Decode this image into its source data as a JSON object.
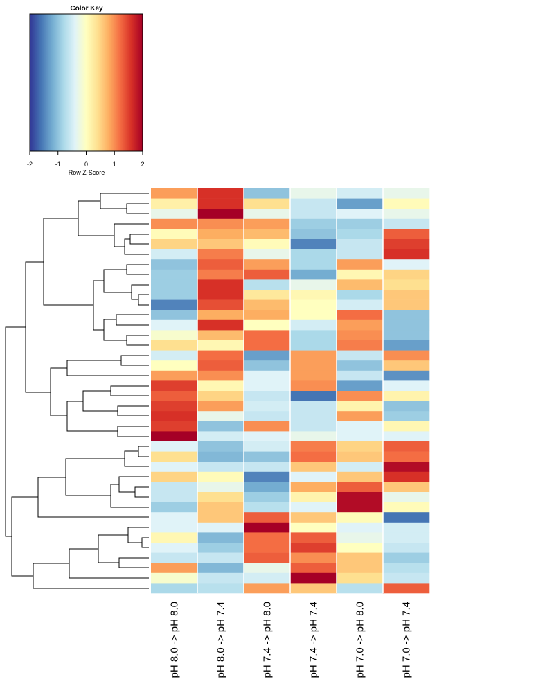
{
  "chart_data": {
    "type": "heatmap",
    "key_title": "Color Key",
    "key_xlabel": "Row Z-Score",
    "key_ticks": [
      -2,
      -1,
      0,
      1,
      2
    ],
    "zlim": [
      -2,
      2
    ],
    "colormap": [
      "#313695",
      "#4575b4",
      "#74add1",
      "#abd9e9",
      "#e0f3f8",
      "#ffffbf",
      "#fee090",
      "#fdae61",
      "#f46d43",
      "#d73027",
      "#a50026"
    ],
    "columns": [
      "pH 8.0 -> pH 8.0",
      "pH 8.0 -> pH 7.4",
      "pH 7.4 -> pH 8.0",
      "pH 7.4 -> pH 7.4",
      "pH 7.0 -> pH 8.0",
      "pH 7.0 -> pH 7.4"
    ],
    "values": [
      [
        0.9,
        1.6,
        -1.0,
        -0.3,
        -0.5,
        -0.3
      ],
      [
        0.2,
        1.6,
        0.4,
        -0.6,
        -1.3,
        0.05
      ],
      [
        -0.3,
        2.0,
        -0.3,
        -0.6,
        -0.4,
        -0.3
      ],
      [
        1.0,
        1.0,
        0.9,
        -0.9,
        -0.9,
        -0.6
      ],
      [
        0.05,
        0.8,
        0.7,
        -1.0,
        -0.8,
        1.3
      ],
      [
        0.5,
        0.6,
        0.05,
        -1.5,
        -0.6,
        1.5
      ],
      [
        -0.5,
        1.1,
        -0.3,
        -0.8,
        -0.6,
        1.6
      ],
      [
        -1.0,
        1.3,
        0.9,
        -0.8,
        0.9,
        -0.4
      ],
      [
        -0.9,
        1.1,
        1.3,
        -1.2,
        0.1,
        0.5
      ],
      [
        -0.9,
        1.6,
        -0.7,
        -0.3,
        0.7,
        0.4
      ],
      [
        -0.9,
        1.6,
        0.3,
        0.1,
        -0.8,
        0.6
      ],
      [
        -1.5,
        1.4,
        0.7,
        0,
        -0.5,
        0.6
      ],
      [
        -1.0,
        0.8,
        0.8,
        0,
        1.2,
        -1.0
      ],
      [
        -0.4,
        1.6,
        0,
        -0.5,
        0.9,
        -1.0
      ],
      [
        -0.1,
        0.7,
        1.2,
        -0.8,
        1.0,
        -1.0
      ],
      [
        0.4,
        0.1,
        1.2,
        -0.8,
        1.1,
        -1.3
      ],
      [
        -0.5,
        1.2,
        -1.3,
        0.9,
        -0.6,
        1.0
      ],
      [
        0,
        1.3,
        -1.0,
        0.9,
        -1.0,
        0.6
      ],
      [
        0.9,
        1.0,
        -0.4,
        0.9,
        -0.6,
        -1.4
      ],
      [
        1.5,
        0.1,
        -0.4,
        1.0,
        -1.3,
        -0.4
      ],
      [
        1.3,
        0.5,
        -0.6,
        -1.6,
        1.0,
        0.15
      ],
      [
        1.5,
        0.9,
        -0.5,
        -0.6,
        0.15,
        -1.0
      ],
      [
        1.6,
        -0.3,
        -0.6,
        -0.6,
        0.9,
        -0.9
      ],
      [
        1.5,
        -1.0,
        1.0,
        -0.6,
        -0.4,
        0.1
      ],
      [
        2.0,
        -0.5,
        -0.4,
        -0.3,
        -0.4,
        -0.4
      ],
      [
        -0.4,
        -1.0,
        -0.5,
        1.1,
        0.5,
        1.3
      ],
      [
        0.4,
        -1.1,
        -1.0,
        1.2,
        0.6,
        1.2
      ],
      [
        -0.4,
        -0.6,
        -0.6,
        0.6,
        -0.5,
        1.9
      ],
      [
        0.5,
        0.05,
        -1.5,
        -0.4,
        0.6,
        1.6
      ],
      [
        -0.6,
        -0.3,
        -1.2,
        0.8,
        1.3,
        0.6
      ],
      [
        -0.6,
        0.4,
        -0.9,
        0.15,
        1.9,
        -0.3
      ],
      [
        -0.9,
        0.6,
        -0.7,
        -0.4,
        1.9,
        0.05
      ],
      [
        -0.4,
        0.6,
        1.3,
        0.6,
        0.05,
        -1.6
      ],
      [
        -0.4,
        -0.4,
        2.0,
        0,
        -0.4,
        -0.5
      ],
      [
        0.1,
        -1.1,
        1.2,
        1.3,
        -0.3,
        -0.5
      ],
      [
        -0.4,
        -0.9,
        1.2,
        1.5,
        0,
        -0.6
      ],
      [
        -0.6,
        -0.6,
        1.3,
        1.0,
        0.6,
        -0.9
      ],
      [
        0.9,
        -1.1,
        -0.3,
        1.3,
        0.6,
        -0.7
      ],
      [
        -0.1,
        -0.6,
        -0.5,
        2.0,
        0.4,
        -0.6
      ],
      [
        -0.8,
        -0.7,
        0.9,
        0.6,
        -0.7,
        1.3
      ]
    ]
  }
}
